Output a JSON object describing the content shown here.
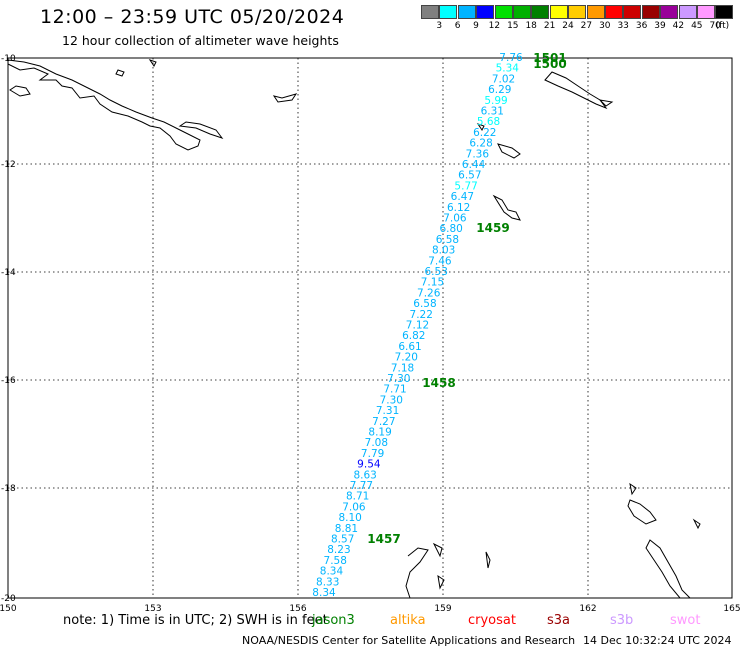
{
  "header": {
    "title": "12:00 – 23:59 UTC 05/20/2024",
    "subtitle": "12 hour collection of altimeter wave heights"
  },
  "colorbar": {
    "unit": "(ft)",
    "colors": [
      "#808080",
      "#00ffff",
      "#00b4ff",
      "#0000ff",
      "#00e000",
      "#00b000",
      "#008000",
      "#ffff00",
      "#ffcc00",
      "#ff9900",
      "#ff0000",
      "#cc0000",
      "#990000",
      "#990099",
      "#cc99ff",
      "#ff99ff",
      "#000000"
    ],
    "labels": [
      "3",
      "6",
      "9",
      "12",
      "15",
      "18",
      "21",
      "24",
      "27",
      "30",
      "33",
      "36",
      "39",
      "42",
      "45",
      "70"
    ]
  },
  "axes": {
    "lon_ticks": [
      "150",
      "153",
      "156",
      "159",
      "162",
      "165"
    ],
    "lat_ticks": [
      "-10",
      "-12",
      "-14",
      "-16",
      "-18",
      "-20"
    ]
  },
  "track": {
    "readings": [
      "7.76",
      "5.34",
      "7.02",
      "6.29",
      "5.99",
      "6.31",
      "5.68",
      "6.22",
      "6.28",
      "7.36",
      "6.44",
      "6.57",
      "5.77",
      "6.47",
      "6.12",
      "7.06",
      "6.80",
      "6.58",
      "8.03",
      "7.46",
      "6.53",
      "7.15",
      "7.26",
      "6.58",
      "7.22",
      "7.12",
      "6.82",
      "6.61",
      "7.20",
      "7.18",
      "7.30",
      "7.71",
      "7.30",
      "7.31",
      "7.27",
      "8.19",
      "7.08",
      "7.79",
      "9.54",
      "8.63",
      "7.77",
      "8.71",
      "7.06",
      "8.10",
      "8.81",
      "8.57",
      "8.23",
      "7.58",
      "8.34",
      "8.33",
      "8.34"
    ],
    "times": [
      "1501",
      "1500",
      "1459",
      "1458",
      "1457"
    ]
  },
  "footer": {
    "note": "note:  1) Time is in UTC;  2) SWH is in feet",
    "satellites": [
      {
        "name": "jason3",
        "color": "#008000"
      },
      {
        "name": "altika",
        "color": "#ff9900"
      },
      {
        "name": "cryosat",
        "color": "#ff0000"
      },
      {
        "name": "s3a",
        "color": "#990000"
      },
      {
        "name": "s3b",
        "color": "#cc99ff"
      },
      {
        "name": "swot",
        "color": "#ff99ff"
      }
    ],
    "credit": "NOAA/NESDIS Center for Satellite Applications and Research",
    "timestamp": "14 Dec 10:32:24 UTC 2024"
  }
}
